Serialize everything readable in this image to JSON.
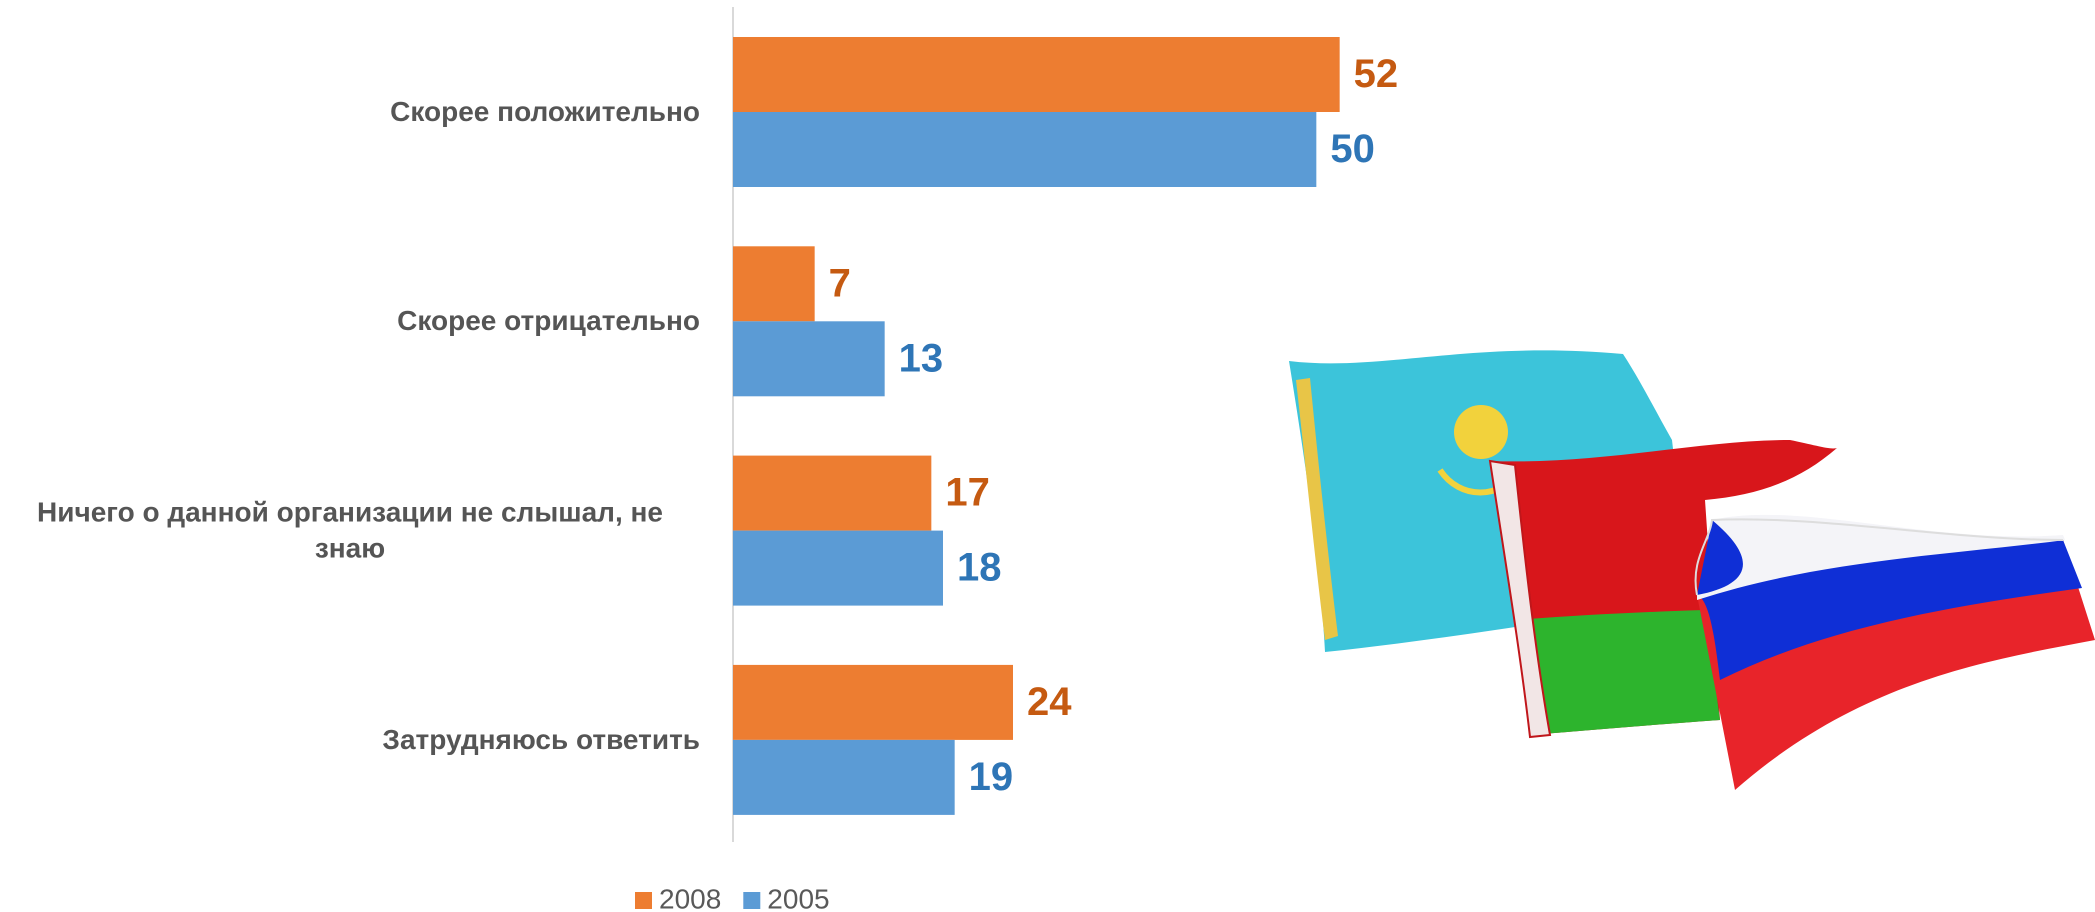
{
  "chart_data": {
    "type": "barh",
    "categories": [
      "Скорее положительно",
      "Скорее отрицательно",
      "Ничего о данной организации не слышал, не знаю",
      "Затрудняюсь ответить"
    ],
    "series": [
      {
        "name": "2008",
        "color": "#ED7D31",
        "label_color": "#C55A11",
        "values": [
          52,
          7,
          17,
          24
        ]
      },
      {
        "name": "2005",
        "color": "#5B9BD5",
        "label_color": "#2E75B6",
        "values": [
          50,
          13,
          18,
          19
        ]
      }
    ],
    "xlim": [
      0,
      60
    ]
  }
}
